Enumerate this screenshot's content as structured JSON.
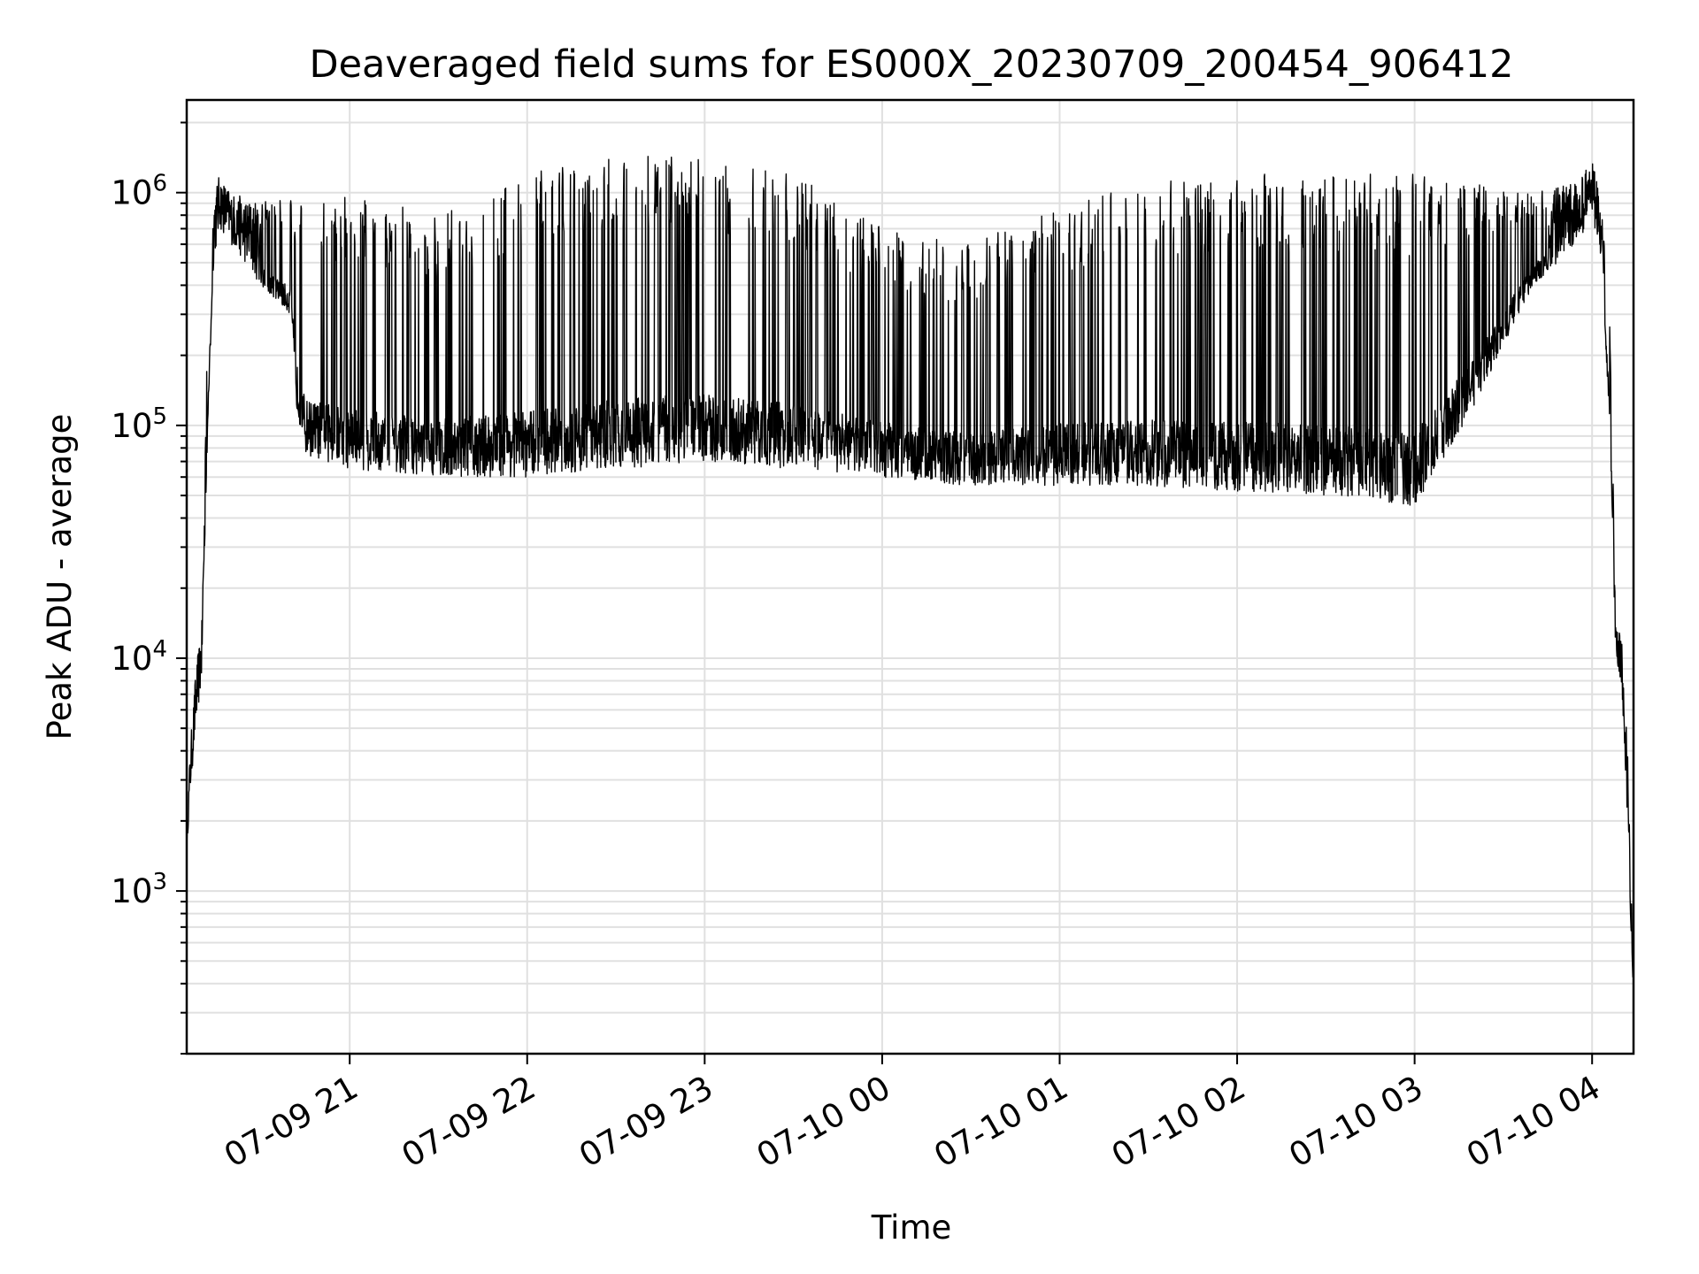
{
  "chart_data": {
    "type": "line",
    "title": "Deaveraged field sums for ES000X_20230709_200454_906412",
    "xlabel": "Time",
    "ylabel": "Peak ADU - average",
    "yscale": "log",
    "grid": true,
    "grid_minor": true,
    "line_color": "#000000",
    "xlim": [
      "2023-07-09 20:04:54",
      "2023-07-10 04:14:00"
    ],
    "ylim": [
      200,
      2500000
    ],
    "x_ticks": [
      {
        "value": "2023-07-09 21:00",
        "label": "07-09 21"
      },
      {
        "value": "2023-07-09 22:00",
        "label": "07-09 22"
      },
      {
        "value": "2023-07-09 23:00",
        "label": "07-09 23"
      },
      {
        "value": "2023-07-10 00:00",
        "label": "07-10 00"
      },
      {
        "value": "2023-07-10 01:00",
        "label": "07-10 01"
      },
      {
        "value": "2023-07-10 02:00",
        "label": "07-10 02"
      },
      {
        "value": "2023-07-10 03:00",
        "label": "07-10 03"
      },
      {
        "value": "2023-07-10 04:00",
        "label": "07-10 04"
      }
    ],
    "y_ticks": [
      {
        "value": 1000,
        "base": "10",
        "exp": "3"
      },
      {
        "value": 10000,
        "base": "10",
        "exp": "4"
      },
      {
        "value": 100000,
        "base": "10",
        "exp": "5"
      },
      {
        "value": 1000000,
        "base": "10",
        "exp": "6"
      }
    ],
    "envelope": [
      {
        "t": "2023-07-09 20:04:54",
        "low": 1500,
        "high": 1600
      },
      {
        "t": "2023-07-09 20:06:00",
        "low": 2500,
        "high": 4000
      },
      {
        "t": "2023-07-09 20:08:00",
        "low": 5000,
        "high": 9000
      },
      {
        "t": "2023-07-09 20:10:00",
        "low": 8000,
        "high": 14000
      },
      {
        "t": "2023-07-09 20:12:00",
        "low": 100000,
        "high": 300000
      },
      {
        "t": "2023-07-09 20:14:00",
        "low": 500000,
        "high": 1000000
      },
      {
        "t": "2023-07-09 20:16:00",
        "low": 700000,
        "high": 1200000
      },
      {
        "t": "2023-07-09 20:20:00",
        "low": 600000,
        "high": 1000000
      },
      {
        "t": "2023-07-09 20:30:00",
        "low": 400000,
        "high": 900000
      },
      {
        "t": "2023-07-09 20:40:00",
        "low": 300000,
        "high": 1000000
      },
      {
        "t": "2023-07-09 20:42:00",
        "low": 120000,
        "high": 900000
      },
      {
        "t": "2023-07-09 20:45:00",
        "low": 75000,
        "high": 900000
      },
      {
        "t": "2023-07-09 21:00:00",
        "low": 65000,
        "high": 1000000
      },
      {
        "t": "2023-07-09 21:30:00",
        "low": 60000,
        "high": 800000
      },
      {
        "t": "2023-07-09 22:00:00",
        "low": 60000,
        "high": 1200000
      },
      {
        "t": "2023-07-09 22:30:00",
        "low": 65000,
        "high": 1500000
      },
      {
        "t": "2023-07-09 23:00:00",
        "low": 70000,
        "high": 1500000
      },
      {
        "t": "2023-07-09 23:30:00",
        "low": 65000,
        "high": 1200000
      },
      {
        "t": "2023-07-10 00:00:00",
        "low": 60000,
        "high": 700000
      },
      {
        "t": "2023-07-10 00:30:00",
        "low": 55000,
        "high": 600000
      },
      {
        "t": "2023-07-10 01:00:00",
        "low": 55000,
        "high": 900000
      },
      {
        "t": "2023-07-10 01:30:00",
        "low": 55000,
        "high": 1100000
      },
      {
        "t": "2023-07-10 02:00:00",
        "low": 52000,
        "high": 1200000
      },
      {
        "t": "2023-07-10 02:30:00",
        "low": 50000,
        "high": 1200000
      },
      {
        "t": "2023-07-10 03:00:00",
        "low": 45000,
        "high": 1200000
      },
      {
        "t": "2023-07-10 03:20:00",
        "low": 120000,
        "high": 1100000
      },
      {
        "t": "2023-07-10 03:40:00",
        "low": 400000,
        "high": 1000000
      },
      {
        "t": "2023-07-10 03:55:00",
        "low": 600000,
        "high": 1100000
      },
      {
        "t": "2023-07-10 04:00:00",
        "low": 800000,
        "high": 1400000
      },
      {
        "t": "2023-07-10 04:03:00",
        "low": 500000,
        "high": 900000
      },
      {
        "t": "2023-07-10 04:06:00",
        "low": 100000,
        "high": 300000
      },
      {
        "t": "2023-07-10 04:08:00",
        "low": 10000,
        "high": 16000
      },
      {
        "t": "2023-07-10 04:10:00",
        "low": 7000,
        "high": 12000
      },
      {
        "t": "2023-07-10 04:12:00",
        "low": 2000,
        "high": 4000
      },
      {
        "t": "2023-07-10 04:14:00",
        "low": 300,
        "high": 500
      }
    ]
  }
}
